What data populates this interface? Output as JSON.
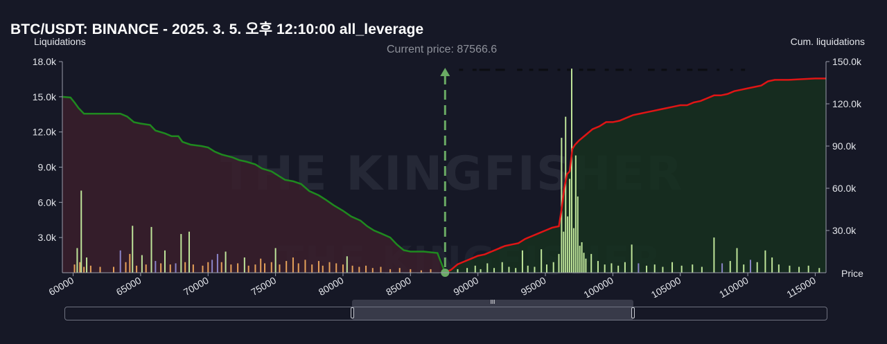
{
  "title": "BTC/USDT: BINANCE - 2025. 3. 5. 오후 12:10:00 all_leverage",
  "watermark": {
    "brand": "THE KINGFISHER",
    "suffix": ".io"
  },
  "slider": {
    "grip": "III"
  },
  "colors": {
    "background": "#161826",
    "short_line": "#1f8a1f",
    "long_line": "#e01515",
    "short_fill": "#3a1f2c",
    "long_fill": "#16301f",
    "current_price": "#6aaa64",
    "bar_orange": "#e6a15a",
    "bar_green": "#bfe59a",
    "bar_purple": "#8a84c8"
  },
  "chart_data": {
    "type": "bar",
    "title": "BTC/USDT: BINANCE - 2025. 3. 5. 오후 12:10:00 all_leverage",
    "xlabel": "Price",
    "ylabel": "Liquidations",
    "y2label": "Cum. liquidations",
    "current_price_label": "Current price: 87566.6",
    "current_price": 87566.6,
    "xlim": [
      59200,
      115800
    ],
    "ylim": [
      0,
      18000
    ],
    "y2lim": [
      0,
      150000
    ],
    "x_ticks": [
      60000,
      65000,
      70000,
      75000,
      80000,
      85000,
      90000,
      95000,
      100000,
      105000,
      110000,
      115000
    ],
    "y_ticks": [
      {
        "value": 3000,
        "label": "3.0k"
      },
      {
        "value": 6000,
        "label": "6.0k"
      },
      {
        "value": 9000,
        "label": "9.0k"
      },
      {
        "value": 12000,
        "label": "12.0k"
      },
      {
        "value": 15000,
        "label": "15.0k"
      },
      {
        "value": 18000,
        "label": "18.0k"
      }
    ],
    "y2_ticks": [
      {
        "value": 30000,
        "label": "30.0k"
      },
      {
        "value": 60000,
        "label": "60.0k"
      },
      {
        "value": 90000,
        "label": "90.0k"
      },
      {
        "value": 120000,
        "label": "120.0k"
      },
      {
        "value": 150000,
        "label": "150.0k"
      }
    ],
    "grid": false,
    "bars": [
      {
        "x": 60100,
        "y": 700,
        "c": "o"
      },
      {
        "x": 60300,
        "y": 2100,
        "c": "g"
      },
      {
        "x": 60500,
        "y": 900,
        "c": "o"
      },
      {
        "x": 60600,
        "y": 7000,
        "c": "g"
      },
      {
        "x": 60800,
        "y": 500,
        "c": "o"
      },
      {
        "x": 61000,
        "y": 1300,
        "c": "g"
      },
      {
        "x": 61300,
        "y": 600,
        "c": "o"
      },
      {
        "x": 62000,
        "y": 500,
        "c": "o"
      },
      {
        "x": 63000,
        "y": 500,
        "c": "o"
      },
      {
        "x": 63500,
        "y": 1900,
        "c": "p"
      },
      {
        "x": 63900,
        "y": 900,
        "c": "o"
      },
      {
        "x": 64200,
        "y": 1600,
        "c": "o"
      },
      {
        "x": 64400,
        "y": 4000,
        "c": "g"
      },
      {
        "x": 64700,
        "y": 600,
        "c": "o"
      },
      {
        "x": 65100,
        "y": 1500,
        "c": "g"
      },
      {
        "x": 65400,
        "y": 700,
        "c": "o"
      },
      {
        "x": 65800,
        "y": 3900,
        "c": "g"
      },
      {
        "x": 66100,
        "y": 1000,
        "c": "p"
      },
      {
        "x": 66500,
        "y": 800,
        "c": "o"
      },
      {
        "x": 66800,
        "y": 1900,
        "c": "g"
      },
      {
        "x": 67200,
        "y": 700,
        "c": "o"
      },
      {
        "x": 67600,
        "y": 800,
        "c": "p"
      },
      {
        "x": 68000,
        "y": 3300,
        "c": "g"
      },
      {
        "x": 68300,
        "y": 900,
        "c": "o"
      },
      {
        "x": 68600,
        "y": 3500,
        "c": "g"
      },
      {
        "x": 68900,
        "y": 700,
        "c": "o"
      },
      {
        "x": 69600,
        "y": 600,
        "c": "o"
      },
      {
        "x": 70000,
        "y": 900,
        "c": "o"
      },
      {
        "x": 70300,
        "y": 1100,
        "c": "p"
      },
      {
        "x": 70700,
        "y": 1600,
        "c": "p"
      },
      {
        "x": 71000,
        "y": 900,
        "c": "o"
      },
      {
        "x": 71300,
        "y": 1800,
        "c": "g"
      },
      {
        "x": 71700,
        "y": 700,
        "c": "o"
      },
      {
        "x": 72200,
        "y": 800,
        "c": "o"
      },
      {
        "x": 72700,
        "y": 1300,
        "c": "g"
      },
      {
        "x": 73000,
        "y": 600,
        "c": "o"
      },
      {
        "x": 73500,
        "y": 700,
        "c": "o"
      },
      {
        "x": 73900,
        "y": 1200,
        "c": "o"
      },
      {
        "x": 74200,
        "y": 800,
        "c": "o"
      },
      {
        "x": 74700,
        "y": 900,
        "c": "o"
      },
      {
        "x": 75000,
        "y": 2100,
        "c": "g"
      },
      {
        "x": 75300,
        "y": 700,
        "c": "o"
      },
      {
        "x": 75800,
        "y": 1000,
        "c": "o"
      },
      {
        "x": 76300,
        "y": 1300,
        "c": "o"
      },
      {
        "x": 76700,
        "y": 800,
        "c": "o"
      },
      {
        "x": 77200,
        "y": 1100,
        "c": "o"
      },
      {
        "x": 77700,
        "y": 700,
        "c": "o"
      },
      {
        "x": 78200,
        "y": 1000,
        "c": "o"
      },
      {
        "x": 78500,
        "y": 600,
        "c": "o"
      },
      {
        "x": 79000,
        "y": 900,
        "c": "o"
      },
      {
        "x": 79500,
        "y": 800,
        "c": "o"
      },
      {
        "x": 80000,
        "y": 700,
        "c": "o"
      },
      {
        "x": 80300,
        "y": 1400,
        "c": "g"
      },
      {
        "x": 80700,
        "y": 600,
        "c": "o"
      },
      {
        "x": 81200,
        "y": 500,
        "c": "o"
      },
      {
        "x": 81700,
        "y": 600,
        "c": "o"
      },
      {
        "x": 82200,
        "y": 400,
        "c": "o"
      },
      {
        "x": 82800,
        "y": 500,
        "c": "o"
      },
      {
        "x": 83500,
        "y": 300,
        "c": "o"
      },
      {
        "x": 84200,
        "y": 400,
        "c": "o"
      },
      {
        "x": 85000,
        "y": 300,
        "c": "o"
      },
      {
        "x": 85800,
        "y": 200,
        "c": "o"
      },
      {
        "x": 86500,
        "y": 300,
        "c": "o"
      },
      {
        "x": 88500,
        "y": 300,
        "c": "g"
      },
      {
        "x": 89200,
        "y": 400,
        "c": "g"
      },
      {
        "x": 89800,
        "y": 600,
        "c": "g"
      },
      {
        "x": 90200,
        "y": 300,
        "c": "g"
      },
      {
        "x": 90700,
        "y": 800,
        "c": "g"
      },
      {
        "x": 91200,
        "y": 400,
        "c": "g"
      },
      {
        "x": 91800,
        "y": 900,
        "c": "g"
      },
      {
        "x": 92300,
        "y": 500,
        "c": "g"
      },
      {
        "x": 92800,
        "y": 400,
        "c": "g"
      },
      {
        "x": 93300,
        "y": 1900,
        "c": "g"
      },
      {
        "x": 93700,
        "y": 600,
        "c": "g"
      },
      {
        "x": 94200,
        "y": 500,
        "c": "g"
      },
      {
        "x": 94700,
        "y": 2000,
        "c": "g"
      },
      {
        "x": 95100,
        "y": 700,
        "c": "g"
      },
      {
        "x": 95600,
        "y": 900,
        "c": "g"
      },
      {
        "x": 96000,
        "y": 1600,
        "c": "g"
      },
      {
        "x": 96200,
        "y": 11500,
        "c": "g"
      },
      {
        "x": 96350,
        "y": 3500,
        "c": "g"
      },
      {
        "x": 96500,
        "y": 13300,
        "c": "g"
      },
      {
        "x": 96650,
        "y": 4800,
        "c": "g"
      },
      {
        "x": 96800,
        "y": 8000,
        "c": "g"
      },
      {
        "x": 96950,
        "y": 17400,
        "c": "g"
      },
      {
        "x": 97100,
        "y": 3800,
        "c": "g"
      },
      {
        "x": 97250,
        "y": 10000,
        "c": "g"
      },
      {
        "x": 97400,
        "y": 6500,
        "c": "g"
      },
      {
        "x": 97550,
        "y": 2300,
        "c": "g"
      },
      {
        "x": 97700,
        "y": 2600,
        "c": "g"
      },
      {
        "x": 97850,
        "y": 1700,
        "c": "g"
      },
      {
        "x": 98000,
        "y": 1200,
        "c": "g"
      },
      {
        "x": 98400,
        "y": 1600,
        "c": "g"
      },
      {
        "x": 98900,
        "y": 1000,
        "c": "g"
      },
      {
        "x": 99400,
        "y": 700,
        "c": "g"
      },
      {
        "x": 99900,
        "y": 800,
        "c": "g"
      },
      {
        "x": 100400,
        "y": 600,
        "c": "g"
      },
      {
        "x": 100900,
        "y": 900,
        "c": "g"
      },
      {
        "x": 101400,
        "y": 2400,
        "c": "g"
      },
      {
        "x": 101900,
        "y": 800,
        "c": "p"
      },
      {
        "x": 102500,
        "y": 600,
        "c": "g"
      },
      {
        "x": 103100,
        "y": 700,
        "c": "g"
      },
      {
        "x": 103700,
        "y": 500,
        "c": "g"
      },
      {
        "x": 104400,
        "y": 900,
        "c": "g"
      },
      {
        "x": 105100,
        "y": 600,
        "c": "g"
      },
      {
        "x": 105900,
        "y": 700,
        "c": "g"
      },
      {
        "x": 106600,
        "y": 500,
        "c": "g"
      },
      {
        "x": 107500,
        "y": 3000,
        "c": "g"
      },
      {
        "x": 108100,
        "y": 800,
        "c": "p"
      },
      {
        "x": 108700,
        "y": 1000,
        "c": "g"
      },
      {
        "x": 109200,
        "y": 2100,
        "c": "g"
      },
      {
        "x": 109700,
        "y": 700,
        "c": "g"
      },
      {
        "x": 110200,
        "y": 1100,
        "c": "p"
      },
      {
        "x": 110700,
        "y": 900,
        "c": "g"
      },
      {
        "x": 111300,
        "y": 1900,
        "c": "g"
      },
      {
        "x": 111800,
        "y": 1300,
        "c": "g"
      },
      {
        "x": 112300,
        "y": 700,
        "c": "g"
      },
      {
        "x": 113100,
        "y": 600,
        "c": "g"
      },
      {
        "x": 113800,
        "y": 500,
        "c": "g"
      },
      {
        "x": 114500,
        "y": 600,
        "c": "g"
      },
      {
        "x": 115300,
        "y": 400,
        "c": "g"
      }
    ],
    "short_cumulative": [
      [
        59200,
        125000
      ],
      [
        59800,
        124500
      ],
      [
        60100,
        121000
      ],
      [
        60400,
        117000
      ],
      [
        60800,
        113000
      ],
      [
        61500,
        113000
      ],
      [
        62500,
        113000
      ],
      [
        63500,
        113000
      ],
      [
        64000,
        111000
      ],
      [
        64500,
        107000
      ],
      [
        65000,
        106000
      ],
      [
        65700,
        105000
      ],
      [
        66100,
        101000
      ],
      [
        66800,
        99000
      ],
      [
        67300,
        97000
      ],
      [
        67800,
        97000
      ],
      [
        68100,
        93000
      ],
      [
        68700,
        91000
      ],
      [
        69500,
        90000
      ],
      [
        70000,
        89000
      ],
      [
        70500,
        86000
      ],
      [
        71000,
        84000
      ],
      [
        71800,
        82000
      ],
      [
        72300,
        80000
      ],
      [
        72800,
        79000
      ],
      [
        73500,
        77000
      ],
      [
        74000,
        74000
      ],
      [
        74700,
        72000
      ],
      [
        75200,
        69000
      ],
      [
        75700,
        66000
      ],
      [
        76300,
        65000
      ],
      [
        76900,
        63000
      ],
      [
        77500,
        58000
      ],
      [
        78200,
        55000
      ],
      [
        78700,
        52000
      ],
      [
        79300,
        48000
      ],
      [
        80000,
        44000
      ],
      [
        80600,
        40000
      ],
      [
        81300,
        37000
      ],
      [
        81800,
        33000
      ],
      [
        82300,
        30000
      ],
      [
        82800,
        28000
      ],
      [
        83500,
        25000
      ],
      [
        84000,
        20000
      ],
      [
        84500,
        16000
      ],
      [
        85000,
        15000
      ],
      [
        86000,
        15000
      ],
      [
        87000,
        14000
      ],
      [
        87566.6,
        0
      ]
    ],
    "long_cumulative": [
      [
        87566.6,
        0
      ],
      [
        88000,
        2000
      ],
      [
        88500,
        6000
      ],
      [
        89000,
        8000
      ],
      [
        89500,
        10000
      ],
      [
        90000,
        12000
      ],
      [
        90500,
        13000
      ],
      [
        91000,
        15000
      ],
      [
        91500,
        17000
      ],
      [
        92000,
        19000
      ],
      [
        92500,
        20000
      ],
      [
        93000,
        21000
      ],
      [
        93500,
        24000
      ],
      [
        94000,
        26000
      ],
      [
        94500,
        28000
      ],
      [
        95000,
        30000
      ],
      [
        95500,
        32000
      ],
      [
        96000,
        33000
      ],
      [
        96200,
        45000
      ],
      [
        96400,
        60000
      ],
      [
        96600,
        70000
      ],
      [
        96800,
        72000
      ],
      [
        97000,
        88000
      ],
      [
        97200,
        91000
      ],
      [
        97500,
        94000
      ],
      [
        98000,
        98000
      ],
      [
        98500,
        102000
      ],
      [
        99000,
        104000
      ],
      [
        99500,
        107000
      ],
      [
        100000,
        107000
      ],
      [
        100500,
        108000
      ],
      [
        101000,
        110000
      ],
      [
        101500,
        112000
      ],
      [
        102000,
        113000
      ],
      [
        102500,
        114000
      ],
      [
        103000,
        115000
      ],
      [
        103500,
        116000
      ],
      [
        104000,
        117000
      ],
      [
        104500,
        118000
      ],
      [
        105000,
        119000
      ],
      [
        105500,
        119000
      ],
      [
        106000,
        121000
      ],
      [
        106500,
        122000
      ],
      [
        107000,
        124000
      ],
      [
        107500,
        126000
      ],
      [
        108000,
        126000
      ],
      [
        108500,
        127000
      ],
      [
        109000,
        129000
      ],
      [
        109500,
        130000
      ],
      [
        110000,
        131000
      ],
      [
        110500,
        132000
      ],
      [
        111000,
        133000
      ],
      [
        111500,
        136000
      ],
      [
        112000,
        137000
      ],
      [
        113000,
        137000
      ],
      [
        114000,
        137500
      ],
      [
        115000,
        138000
      ],
      [
        115800,
        138000
      ]
    ],
    "dashes_y": 17300,
    "dashes": [
      [
        88600,
        88900
      ],
      [
        89600,
        89900
      ],
      [
        90100,
        90900
      ],
      [
        91300,
        92000
      ],
      [
        92900,
        93300
      ],
      [
        93800,
        94100
      ],
      [
        94500,
        95200
      ],
      [
        95900,
        96100
      ],
      [
        96600,
        96900
      ],
      [
        97500,
        97800
      ],
      [
        98100,
        98700
      ],
      [
        99400,
        99700
      ],
      [
        100200,
        100800
      ],
      [
        101200,
        101400
      ],
      [
        102600,
        103100
      ],
      [
        103600,
        104000
      ],
      [
        104700,
        105000
      ],
      [
        105500,
        105900
      ],
      [
        106300,
        107000
      ],
      [
        107700,
        107900
      ],
      [
        108700,
        108900
      ],
      [
        109500,
        109800
      ]
    ]
  }
}
